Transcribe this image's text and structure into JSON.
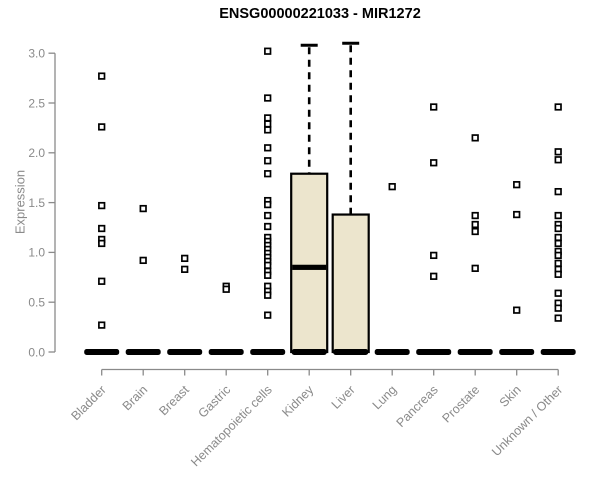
{
  "chart_data": {
    "type": "boxplot",
    "title": "ENSG00000221033 - MIR1272",
    "ylabel": "Expression",
    "ylim": [
      0,
      3.1
    ],
    "yticks": [
      0,
      0.5,
      1.0,
      1.5,
      2.0,
      2.5,
      3.0
    ],
    "grid": false,
    "legend": "none",
    "categories": [
      "Bladder",
      "Brain",
      "Breast",
      "Gastric",
      "Hematopoietic cells",
      "Kidney",
      "Liver",
      "Lung",
      "Pancreas",
      "Prostate",
      "Skin",
      "Unknown / Other"
    ],
    "boxes": [
      {
        "category": "Bladder",
        "q1": 0,
        "median": 0,
        "q3": 0,
        "whisker_low": 0,
        "whisker_high": 0,
        "outliers": [
          2.77,
          2.26,
          1.47,
          1.24,
          1.13,
          1.09,
          0.71,
          0.27
        ]
      },
      {
        "category": "Brain",
        "q1": 0,
        "median": 0,
        "q3": 0,
        "whisker_low": 0,
        "whisker_high": 0,
        "outliers": [
          1.44,
          0.92
        ]
      },
      {
        "category": "Breast",
        "q1": 0,
        "median": 0,
        "q3": 0,
        "whisker_low": 0,
        "whisker_high": 0,
        "outliers": [
          0.94,
          0.83
        ]
      },
      {
        "category": "Gastric",
        "q1": 0,
        "median": 0,
        "q3": 0,
        "whisker_low": 0,
        "whisker_high": 0,
        "outliers": [
          0.66,
          0.63
        ]
      },
      {
        "category": "Hematopoietic cells",
        "q1": 0,
        "median": 0,
        "q3": 0,
        "whisker_low": 0,
        "whisker_high": 0,
        "outliers": [
          3.02,
          2.55,
          2.35,
          2.29,
          2.23,
          2.05,
          1.92,
          1.79,
          1.52,
          1.48,
          1.37,
          1.26,
          1.15,
          1.11,
          1.07,
          1.03,
          0.99,
          0.95,
          0.91,
          0.87,
          0.81,
          0.77,
          0.66,
          0.61,
          0.57,
          0.37
        ]
      },
      {
        "category": "Kidney",
        "q1": 0,
        "median": 0.85,
        "q3": 1.79,
        "whisker_low": 0,
        "whisker_high": 3.08,
        "outliers": []
      },
      {
        "category": "Liver",
        "q1": 0,
        "median": 0,
        "q3": 1.38,
        "whisker_low": 0,
        "whisker_high": 3.1,
        "outliers": []
      },
      {
        "category": "Lung",
        "q1": 0,
        "median": 0,
        "q3": 0,
        "whisker_low": 0,
        "whisker_high": 0,
        "outliers": [
          1.66
        ]
      },
      {
        "category": "Pancreas",
        "q1": 0,
        "median": 0,
        "q3": 0,
        "whisker_low": 0,
        "whisker_high": 0,
        "outliers": [
          2.46,
          1.9,
          0.97,
          0.76
        ]
      },
      {
        "category": "Prostate",
        "q1": 0,
        "median": 0,
        "q3": 0,
        "whisker_low": 0,
        "whisker_high": 0,
        "outliers": [
          2.15,
          1.37,
          1.28,
          1.21,
          0.84
        ]
      },
      {
        "category": "Skin",
        "q1": 0,
        "median": 0,
        "q3": 0,
        "whisker_low": 0,
        "whisker_high": 0,
        "outliers": [
          1.68,
          1.38,
          0.42
        ]
      },
      {
        "category": "Unknown / Other",
        "q1": 0,
        "median": 0,
        "q3": 0,
        "whisker_low": 0,
        "whisker_high": 0,
        "outliers": [
          2.46,
          2.01,
          1.93,
          1.61,
          1.37,
          1.28,
          1.24,
          1.15,
          1.09,
          1.01,
          0.97,
          0.89,
          0.83,
          0.78,
          0.59,
          0.49,
          0.44,
          0.34
        ]
      }
    ],
    "colors": {
      "box_fill": "#ece5cd",
      "box_border": "#000000",
      "median": "#000000",
      "whisker": "#000000",
      "outlier_stroke": "#000000",
      "outlier_fill": "#ffffff",
      "axis": "#8a8a8a",
      "tick_text": "#8a8a8a",
      "title_text": "#000000",
      "background": "#ffffff"
    }
  }
}
